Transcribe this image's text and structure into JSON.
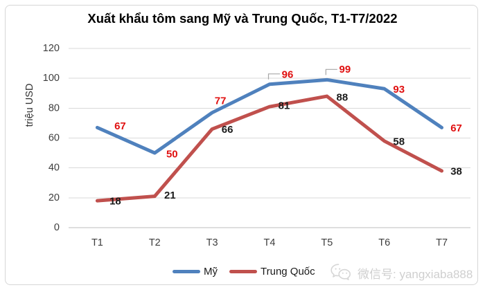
{
  "chart_data": {
    "type": "line",
    "title": "Xuất khẩu tôm sang Mỹ và Trung Quốc, T1-T7/2022",
    "xlabel": "",
    "ylabel": "triệu USD",
    "categories": [
      "T1",
      "T2",
      "T3",
      "T4",
      "T5",
      "T6",
      "T7"
    ],
    "ylim": [
      0,
      120
    ],
    "yticks": [
      0,
      20,
      40,
      60,
      80,
      100,
      120
    ],
    "grid": true,
    "legend_position": "bottom",
    "colors": {
      "grid": "#d9d9d9",
      "axis": "#bdbdbd",
      "leader": "#a6a6a6"
    },
    "series": [
      {
        "name": "Mỹ",
        "color": "#4f81bd",
        "label_color": "#e01010",
        "values": [
          67,
          50,
          77,
          96,
          99,
          93,
          67
        ],
        "label_offsets": [
          [
            33,
            -2
          ],
          [
            25,
            2
          ],
          [
            12,
            -17
          ],
          [
            26,
            -14
          ],
          [
            26,
            -15
          ],
          [
            21,
            1
          ],
          [
            21,
            1
          ]
        ],
        "leader_points": [
          3,
          4
        ]
      },
      {
        "name": "Trung Quốc",
        "color": "#c0504d",
        "label_color": "#1a1a1a",
        "values": [
          18,
          21,
          66,
          81,
          88,
          58,
          38
        ],
        "label_offsets": [
          [
            26,
            1
          ],
          [
            22,
            -1
          ],
          [
            22,
            1
          ],
          [
            21,
            -1
          ],
          [
            22,
            2
          ],
          [
            21,
            1
          ],
          [
            21,
            1
          ]
        ],
        "leader_points": []
      }
    ]
  },
  "watermark": {
    "icon": "wechat-icon",
    "text": "微信号: yangxiaba888"
  }
}
